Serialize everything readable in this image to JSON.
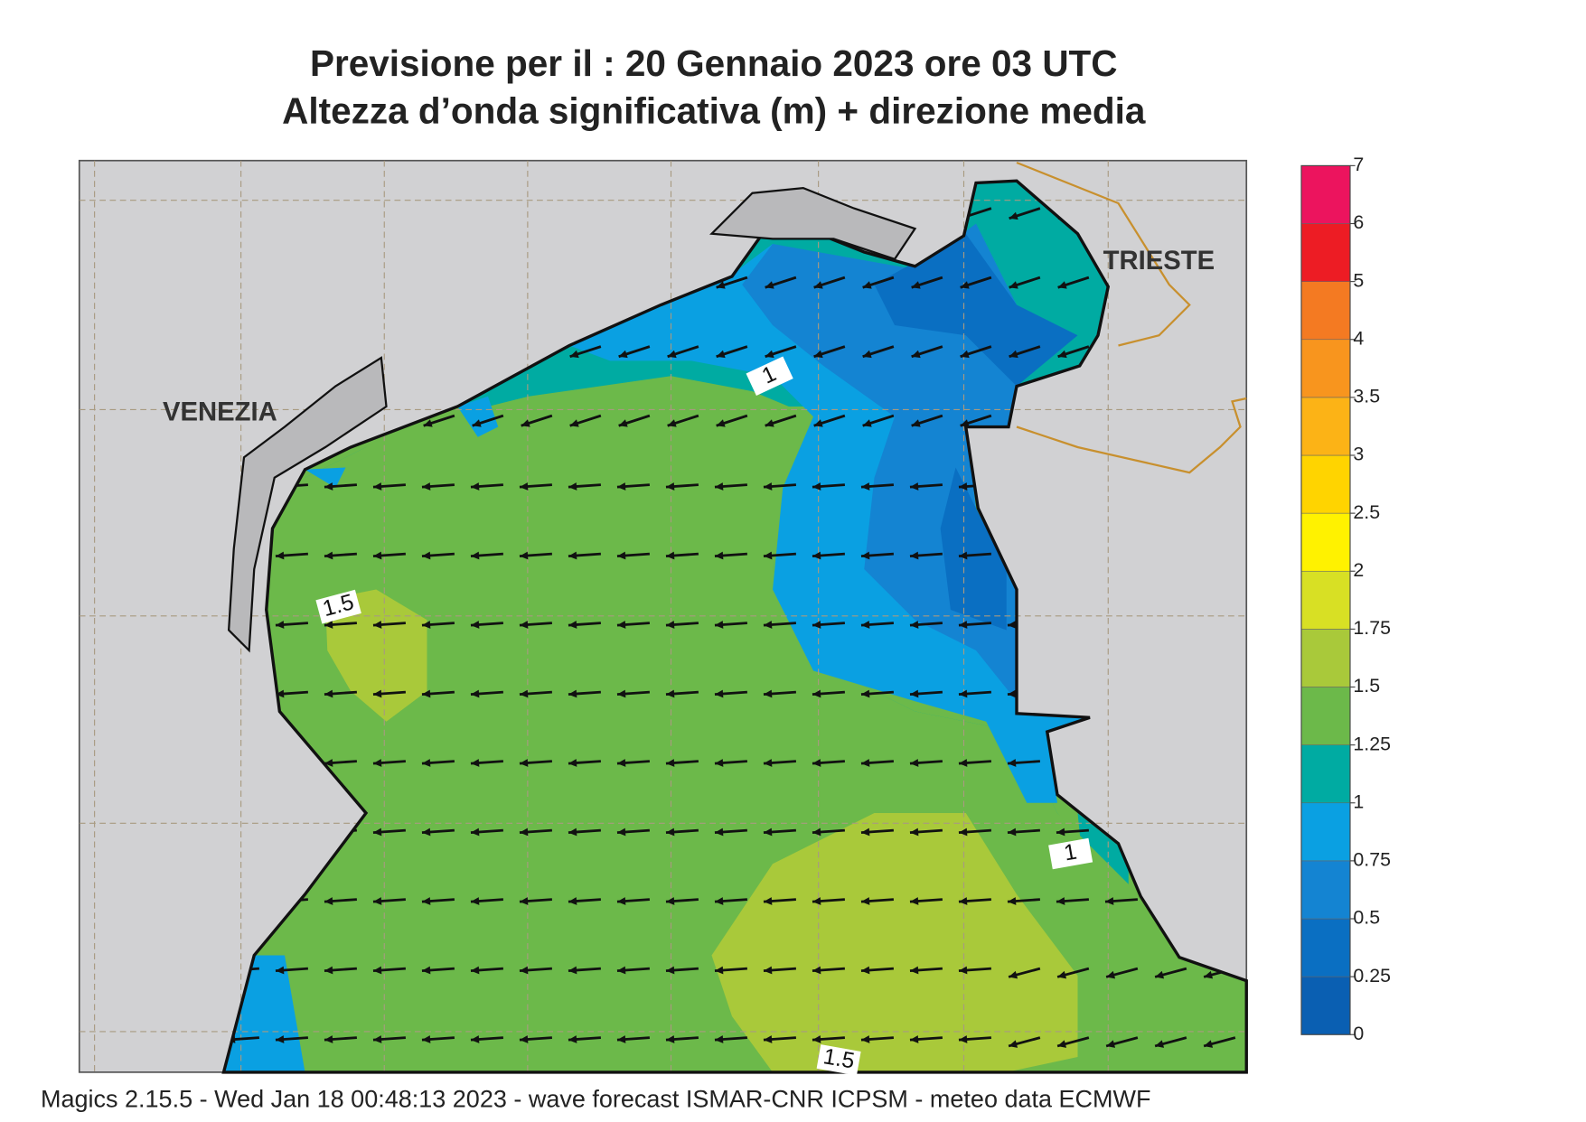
{
  "header": {
    "title": "Previsione per il  :  20  Gennaio  2023   ore 03 UTC",
    "subtitle": "Altezza d’onda significativa (m) + direzione media"
  },
  "places": [
    "VENEZIA",
    "TRIESTE"
  ],
  "contour_labels": [
    "1",
    "1.5",
    "1",
    "1.5"
  ],
  "colorbar": {
    "ticks": [
      0,
      0.25,
      0.5,
      0.75,
      1,
      1.25,
      1.5,
      1.75,
      2,
      2.5,
      3,
      3.5,
      4,
      5,
      6,
      7
    ],
    "colors": [
      "#0a5fb2",
      "#0a6fc2",
      "#1484d2",
      "#0aa0e2",
      "#00aba2",
      "#6cb94a",
      "#a9c93a",
      "#d8e024",
      "#fff200",
      "#ffd400",
      "#fcb316",
      "#f8951e",
      "#f47a22",
      "#ed1c24",
      "#ec145e"
    ]
  },
  "footer": "Magics 2.15.5 - Wed Jan 18 00:48:13 2023 - wave forecast  ISMAR-CNR  ICPSM - meteo data   ECMWF"
}
